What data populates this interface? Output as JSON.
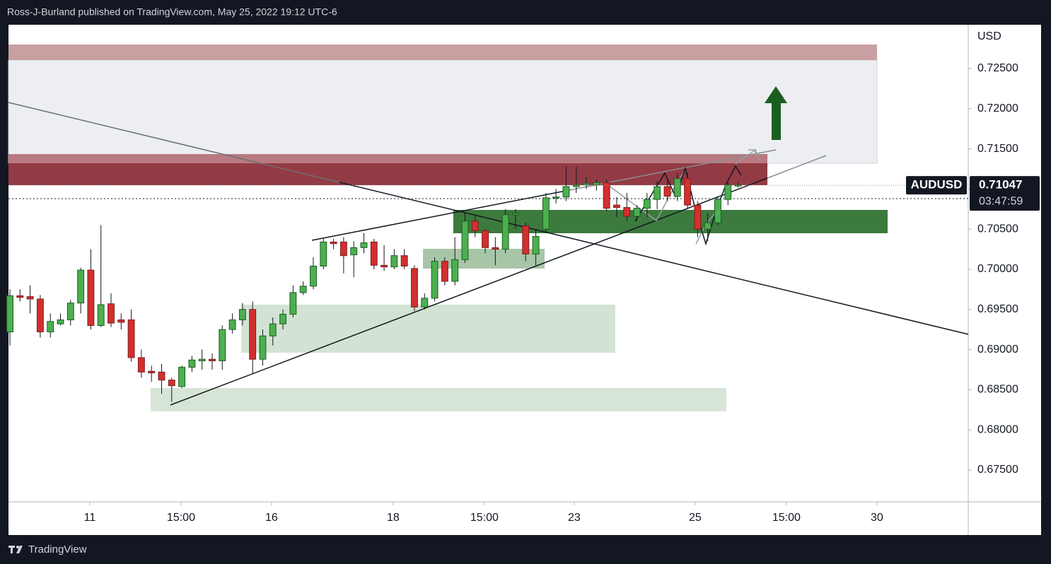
{
  "header": "Ross-J-Burland published on TradingView.com, May 25, 2022 19:12 UTC-6",
  "footer": "TradingView",
  "chart_data": {
    "type": "candlestick",
    "symbol": "AUDUSD",
    "currency": "USD",
    "last_price": {
      "value": 0.71047,
      "label": "0.71047"
    },
    "countdown": "03:47:59",
    "up_color": "#4caf50",
    "down_color": "#d32f2f",
    "wick_color": "#131722",
    "grid": false,
    "ylim": [
      0.67104,
      0.73046
    ],
    "yticks": [
      {
        "value": 0.675,
        "label": "0.67500"
      },
      {
        "value": 0.68,
        "label": "0.68000"
      },
      {
        "value": 0.685,
        "label": "0.68500"
      },
      {
        "value": 0.69,
        "label": "0.69000"
      },
      {
        "value": 0.695,
        "label": "0.69500"
      },
      {
        "value": 0.7,
        "label": "0.70000"
      },
      {
        "value": 0.705,
        "label": "0.70500"
      },
      {
        "value": 0.71,
        "label": "0.71000"
      },
      {
        "value": 0.715,
        "label": "0.71500"
      },
      {
        "value": 0.72,
        "label": "0.72000"
      },
      {
        "value": 0.725,
        "label": "0.72500"
      }
    ],
    "xlim": [
      -0.14,
      94.76
    ],
    "xticks": [
      {
        "value": 7.9,
        "label": "11"
      },
      {
        "value": 16.92,
        "label": "15:00"
      },
      {
        "value": 25.87,
        "label": "16"
      },
      {
        "value": 37.9,
        "label": "18"
      },
      {
        "value": 46.92,
        "label": "15:00"
      },
      {
        "value": 55.8,
        "label": "23"
      },
      {
        "value": 67.76,
        "label": "25"
      },
      {
        "value": 76.78,
        "label": "15:00"
      },
      {
        "value": 85.73,
        "label": "30"
      }
    ],
    "open": [
      0.6922,
      0.6967,
      0.6966,
      0.6963,
      0.6922,
      0.6932,
      0.6937,
      0.6958,
      0.6999,
      0.693,
      0.6957,
      0.6937,
      0.6937,
      0.689,
      0.6873,
      0.6872,
      0.6862,
      0.6854,
      0.6878,
      0.6886,
      0.6888,
      0.6886,
      0.6925,
      0.6937,
      0.695,
      0.6888,
      0.6917,
      0.6932,
      0.6944,
      0.6971,
      0.6979,
      0.7004,
      0.7034,
      0.7034,
      0.7018,
      0.7027,
      0.7034,
      0.7005,
      0.7003,
      0.7017,
      0.7001,
      0.6953,
      0.6964,
      0.701,
      0.6985,
      0.7012,
      0.706,
      0.7048,
      0.7027,
      0.7025,
      0.7068,
      0.7054,
      0.7019,
      0.705,
      0.7089,
      0.709,
      0.7103,
      0.7105,
      0.7105,
      0.7108,
      0.708,
      0.7077,
      0.7066,
      0.7076,
      0.7087,
      0.7103,
      0.7091,
      0.7113,
      0.708,
      0.705,
      0.7058,
      0.7087,
      0.7105
    ],
    "high": [
      0.6975,
      0.6975,
      0.698,
      0.6968,
      0.6945,
      0.6945,
      0.6962,
      0.7002,
      0.7025,
      0.7055,
      0.697,
      0.6945,
      0.695,
      0.69,
      0.688,
      0.6882,
      0.6865,
      0.688,
      0.6892,
      0.69,
      0.6895,
      0.693,
      0.6945,
      0.6958,
      0.696,
      0.6925,
      0.694,
      0.695,
      0.698,
      0.6985,
      0.7015,
      0.7038,
      0.7038,
      0.704,
      0.7035,
      0.7045,
      0.7038,
      0.703,
      0.7025,
      0.7025,
      0.7005,
      0.697,
      0.7015,
      0.7015,
      0.704,
      0.707,
      0.7068,
      0.705,
      0.704,
      0.7075,
      0.7075,
      0.7058,
      0.705,
      0.7095,
      0.71,
      0.7128,
      0.7128,
      0.7115,
      0.7112,
      0.7112,
      0.709,
      0.7095,
      0.708,
      0.7095,
      0.711,
      0.711,
      0.712,
      0.712,
      0.7085,
      0.707,
      0.709,
      0.7108,
      0.7108
    ],
    "low": [
      0.6905,
      0.696,
      0.6945,
      0.6915,
      0.6915,
      0.693,
      0.693,
      0.6945,
      0.6925,
      0.6928,
      0.6928,
      0.6925,
      0.6885,
      0.6865,
      0.686,
      0.6845,
      0.6835,
      0.6852,
      0.6872,
      0.6875,
      0.6875,
      0.6875,
      0.692,
      0.693,
      0.687,
      0.688,
      0.6905,
      0.6925,
      0.694,
      0.6968,
      0.6975,
      0.7,
      0.7025,
      0.6995,
      0.699,
      0.702,
      0.7,
      0.6998,
      0.7,
      0.7,
      0.6948,
      0.695,
      0.696,
      0.698,
      0.698,
      0.7008,
      0.704,
      0.702,
      0.7005,
      0.702,
      0.705,
      0.701,
      0.7005,
      0.7045,
      0.7082,
      0.7085,
      0.7095,
      0.71,
      0.7098,
      0.7072,
      0.7065,
      0.706,
      0.706,
      0.7065,
      0.7075,
      0.7085,
      0.7085,
      0.7075,
      0.704,
      0.7035,
      0.7055,
      0.708,
      0.7102
    ],
    "close": [
      0.6967,
      0.6965,
      0.6963,
      0.6922,
      0.6935,
      0.6937,
      0.6958,
      0.6999,
      0.693,
      0.6956,
      0.6933,
      0.6934,
      0.689,
      0.6872,
      0.6871,
      0.6862,
      0.6855,
      0.6878,
      0.6887,
      0.6888,
      0.6886,
      0.6925,
      0.6937,
      0.695,
      0.6888,
      0.6917,
      0.6932,
      0.6944,
      0.6971,
      0.6979,
      0.7004,
      0.7034,
      0.7032,
      0.7017,
      0.7027,
      0.7033,
      0.7005,
      0.7003,
      0.7017,
      0.7004,
      0.6953,
      0.6964,
      0.701,
      0.6985,
      0.7012,
      0.706,
      0.7048,
      0.7027,
      0.7025,
      0.7068,
      0.707,
      0.7019,
      0.7041,
      0.7089,
      0.709,
      0.7103,
      0.7105,
      0.7107,
      0.7108,
      0.7076,
      0.7077,
      0.7066,
      0.7076,
      0.7087,
      0.7103,
      0.7091,
      0.7113,
      0.708,
      0.705,
      0.7058,
      0.7087,
      0.7105,
      0.7105
    ]
  }
}
